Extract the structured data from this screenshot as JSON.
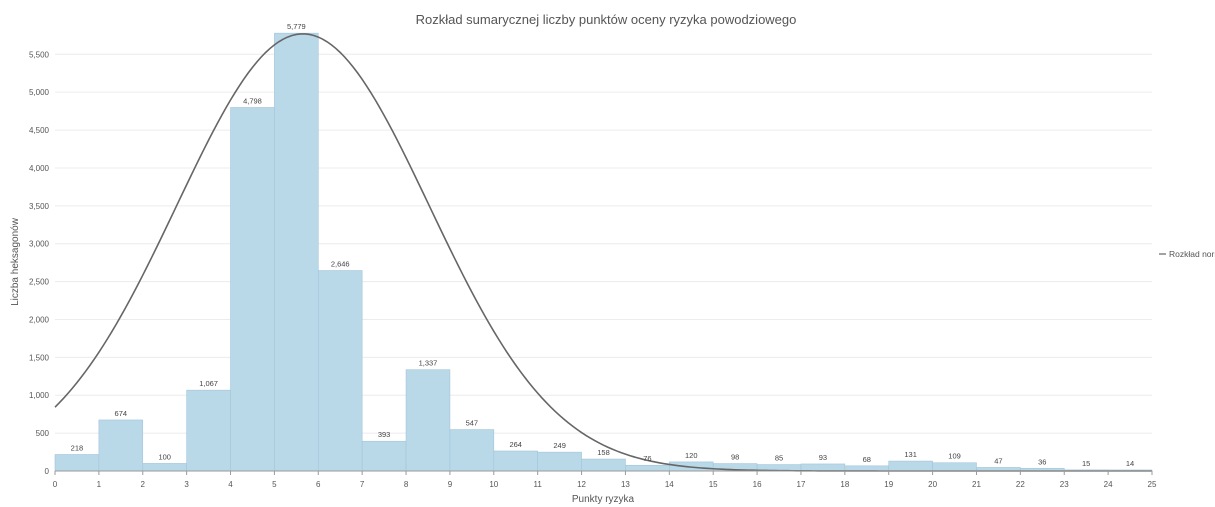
{
  "chart_data": {
    "type": "bar",
    "title": "Rozkład sumarycznej liczby punktów oceny ryzyka powodziowego",
    "xlabel": "Punkty ryzyka",
    "ylabel": "Liczba heksagonów",
    "x_ticks": [
      "0",
      "1",
      "2",
      "3",
      "4",
      "5",
      "6",
      "7",
      "8",
      "9",
      "10",
      "11",
      "12",
      "13",
      "14",
      "15",
      "16",
      "17",
      "18",
      "19",
      "20",
      "21",
      "22",
      "23",
      "24",
      "25"
    ],
    "y_ticks": [
      "0",
      "500",
      "1,000",
      "1,500",
      "2,000",
      "2,500",
      "3,000",
      "3,500",
      "4,000",
      "4,500",
      "5,000",
      "5,500"
    ],
    "xlim": [
      0,
      25
    ],
    "ylim": [
      0,
      5900
    ],
    "bins": [
      [
        0,
        1
      ],
      [
        1,
        2
      ],
      [
        2,
        3
      ],
      [
        3,
        4
      ],
      [
        4,
        5
      ],
      [
        5,
        6
      ],
      [
        6,
        7
      ],
      [
        7,
        8
      ],
      [
        8,
        9
      ],
      [
        9,
        10
      ],
      [
        10,
        11
      ],
      [
        11,
        12
      ],
      [
        12,
        13
      ],
      [
        13,
        14
      ],
      [
        14,
        15
      ],
      [
        15,
        16
      ],
      [
        16,
        17
      ],
      [
        17,
        18
      ],
      [
        18,
        19
      ],
      [
        19,
        20
      ],
      [
        20,
        21
      ],
      [
        21,
        22
      ],
      [
        22,
        23
      ],
      [
        23,
        24
      ],
      [
        24,
        25
      ]
    ],
    "values": [
      218,
      674,
      100,
      1067,
      4798,
      5779,
      2646,
      393,
      1337,
      547,
      264,
      249,
      158,
      76,
      120,
      98,
      85,
      93,
      68,
      131,
      109,
      47,
      36,
      15,
      14
    ],
    "value_labels": [
      "218",
      "674",
      "100",
      "1,067",
      "4,798",
      "5,779",
      "2,646",
      "393",
      "1,337",
      "547",
      "264",
      "249",
      "158",
      "76",
      "120",
      "98",
      "85",
      "93",
      "68",
      "131",
      "109",
      "47",
      "36",
      "15",
      "14"
    ],
    "curve": {
      "name": "Rozkład norm",
      "type": "normal",
      "mean": 5.65,
      "sd": 2.88,
      "peak": 5770
    },
    "grid": true,
    "legend_position": "right",
    "colors": {
      "bar": "#b9d8e8",
      "bar_edge": "#a3c6da",
      "curve": "#666666",
      "grid": "#ececec"
    }
  }
}
